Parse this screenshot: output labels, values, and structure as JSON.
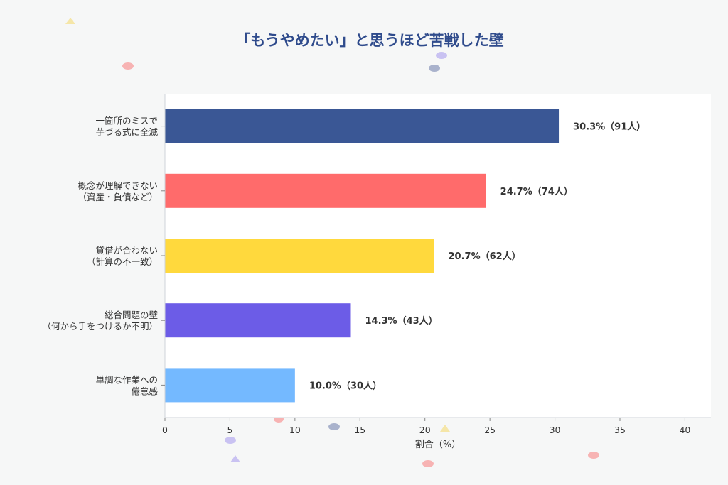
{
  "chart_data": {
    "type": "bar",
    "orientation": "horizontal",
    "title": "「もうやめたい」と思うほど苦戦した壁",
    "xlabel": "割合（%）",
    "ylabel": "",
    "xlim": [
      0,
      42
    ],
    "xticks": [
      0,
      5,
      10,
      15,
      20,
      25,
      30,
      35,
      40
    ],
    "grid": false,
    "categories": [
      [
        "一箇所のミスで",
        "芋づる式に全滅"
      ],
      [
        "概念が理解できない",
        "（資産・負債など）"
      ],
      [
        "貸借が合わない",
        "（計算の不一致）"
      ],
      [
        "総合問題の壁",
        "（何から手をつけるか不明）"
      ],
      [
        "単調な作業への",
        "倦怠感"
      ]
    ],
    "values": [
      30.3,
      24.7,
      20.7,
      14.3,
      10.0
    ],
    "data_labels": [
      "30.3%（91人）",
      "24.7%（74人）",
      "20.7%（62人）",
      "14.3%（43人）",
      "10.0%（30人）"
    ],
    "colors": [
      "#3a5795",
      "#ff6b6b",
      "#ffd93d",
      "#6c5ce7",
      "#74b9ff"
    ]
  },
  "decoration_colors": {
    "title": "#2f4b8c",
    "background": "#f6f7f7",
    "plot": "#ffffff"
  }
}
